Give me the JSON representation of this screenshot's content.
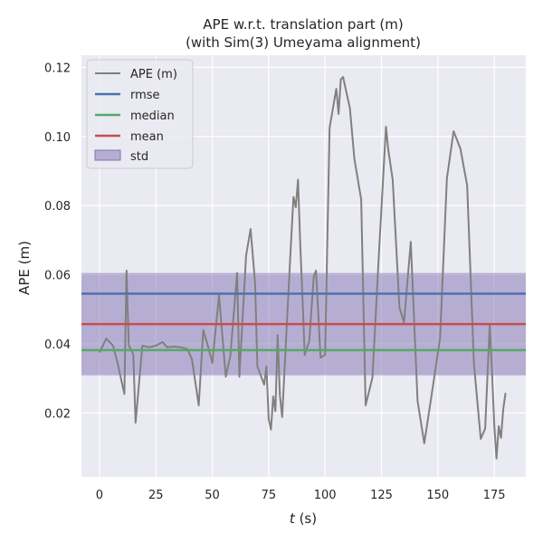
{
  "chart_data": {
    "type": "line",
    "title": "APE w.r.t. translation part (m)",
    "subtitle": "(with Sim(3) Umeyama alignment)",
    "xlabel_var": "t",
    "xlabel_unit": " (s)",
    "ylabel": "APE (m)",
    "xlim": [
      -8,
      189
    ],
    "ylim": [
      0.0015,
      0.1235
    ],
    "xticks": [
      0,
      25,
      50,
      75,
      100,
      125,
      150,
      175
    ],
    "yticks": [
      0.02,
      0.04,
      0.06,
      0.08,
      0.1,
      0.12
    ],
    "ytick_labels": [
      "0.02",
      "0.04",
      "0.06",
      "0.08",
      "0.10",
      "0.12"
    ],
    "grid": true,
    "legend_position": "top-left",
    "stats": {
      "rmse": 0.0545,
      "median": 0.0382,
      "mean": 0.0457,
      "std": 0.0148
    },
    "legend": {
      "ape": "APE (m)",
      "rmse": "rmse",
      "median": "median",
      "mean": "mean",
      "std": "std"
    },
    "colors": {
      "ape": "#808080",
      "rmse": "#4c72b0",
      "median": "#55a868",
      "mean": "#c44e52",
      "std": "#8172b2",
      "background": "#eaeaf2",
      "grid": "#ffffff"
    },
    "series": [
      {
        "name": "APE (m)",
        "x": [
          0,
          3,
          6,
          8,
          11,
          12,
          13,
          15,
          16,
          19,
          22,
          25,
          28,
          30,
          33,
          36,
          39,
          41,
          44,
          46,
          48,
          50,
          53,
          56,
          58,
          61,
          62,
          65,
          67,
          69,
          70,
          73,
          74,
          75,
          76,
          77,
          78,
          79,
          80,
          81,
          83,
          85,
          86,
          87,
          88,
          89,
          90,
          91,
          93,
          95,
          96,
          98,
          100,
          102,
          105,
          106,
          107,
          108,
          111,
          113,
          116,
          118,
          121,
          124,
          127,
          128,
          130,
          133,
          135,
          138,
          141,
          144,
          148,
          151,
          154,
          157,
          160,
          163,
          166,
          169,
          171,
          173,
          174,
          175,
          176,
          177,
          178,
          179,
          180
        ],
        "y": [
          0.0375,
          0.0415,
          0.0395,
          0.0345,
          0.0255,
          0.0612,
          0.0395,
          0.037,
          0.0172,
          0.0395,
          0.039,
          0.0395,
          0.0405,
          0.039,
          0.0392,
          0.039,
          0.0385,
          0.0355,
          0.0222,
          0.044,
          0.0395,
          0.0345,
          0.054,
          0.0305,
          0.0365,
          0.0605,
          0.0305,
          0.0655,
          0.0732,
          0.0575,
          0.0335,
          0.0282,
          0.0335,
          0.0182,
          0.0152,
          0.0248,
          0.0205,
          0.0425,
          0.025,
          0.0188,
          0.045,
          0.0705,
          0.0825,
          0.0795,
          0.0875,
          0.0685,
          0.053,
          0.0368,
          0.0408,
          0.0595,
          0.0612,
          0.036,
          0.0368,
          0.1025,
          0.1138,
          0.1065,
          0.1165,
          0.1172,
          0.1082,
          0.0935,
          0.0818,
          0.0222,
          0.0302,
          0.0675,
          0.1028,
          0.0962,
          0.0875,
          0.0505,
          0.0462,
          0.0695,
          0.0235,
          0.0112,
          0.0285,
          0.0418,
          0.0878,
          0.1015,
          0.0965,
          0.0858,
          0.0342,
          0.0125,
          0.0155,
          0.0455,
          0.0325,
          0.0168,
          0.0068,
          0.0162,
          0.0128,
          0.0212,
          0.0258
        ]
      }
    ]
  }
}
